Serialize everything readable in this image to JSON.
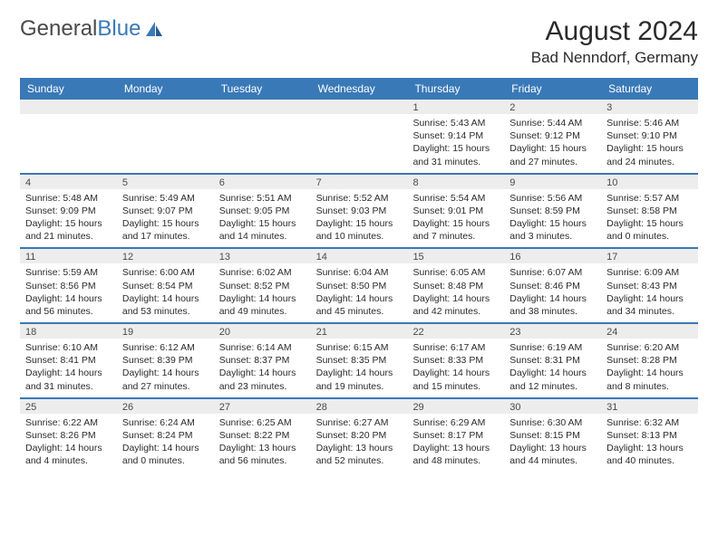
{
  "logo": {
    "text_gray": "General",
    "text_blue": "Blue"
  },
  "title": "August 2024",
  "location": "Bad Nenndorf, Germany",
  "colors": {
    "header_bg": "#3a79b7",
    "daynum_bg": "#ededed",
    "text": "#2b2b2b",
    "border": "#3a79b7"
  },
  "weekdays": [
    "Sunday",
    "Monday",
    "Tuesday",
    "Wednesday",
    "Thursday",
    "Friday",
    "Saturday"
  ],
  "weeks": [
    [
      {
        "n": "",
        "sr": "",
        "ss": "",
        "dl": ""
      },
      {
        "n": "",
        "sr": "",
        "ss": "",
        "dl": ""
      },
      {
        "n": "",
        "sr": "",
        "ss": "",
        "dl": ""
      },
      {
        "n": "",
        "sr": "",
        "ss": "",
        "dl": ""
      },
      {
        "n": "1",
        "sr": "Sunrise: 5:43 AM",
        "ss": "Sunset: 9:14 PM",
        "dl": "Daylight: 15 hours and 31 minutes."
      },
      {
        "n": "2",
        "sr": "Sunrise: 5:44 AM",
        "ss": "Sunset: 9:12 PM",
        "dl": "Daylight: 15 hours and 27 minutes."
      },
      {
        "n": "3",
        "sr": "Sunrise: 5:46 AM",
        "ss": "Sunset: 9:10 PM",
        "dl": "Daylight: 15 hours and 24 minutes."
      }
    ],
    [
      {
        "n": "4",
        "sr": "Sunrise: 5:48 AM",
        "ss": "Sunset: 9:09 PM",
        "dl": "Daylight: 15 hours and 21 minutes."
      },
      {
        "n": "5",
        "sr": "Sunrise: 5:49 AM",
        "ss": "Sunset: 9:07 PM",
        "dl": "Daylight: 15 hours and 17 minutes."
      },
      {
        "n": "6",
        "sr": "Sunrise: 5:51 AM",
        "ss": "Sunset: 9:05 PM",
        "dl": "Daylight: 15 hours and 14 minutes."
      },
      {
        "n": "7",
        "sr": "Sunrise: 5:52 AM",
        "ss": "Sunset: 9:03 PM",
        "dl": "Daylight: 15 hours and 10 minutes."
      },
      {
        "n": "8",
        "sr": "Sunrise: 5:54 AM",
        "ss": "Sunset: 9:01 PM",
        "dl": "Daylight: 15 hours and 7 minutes."
      },
      {
        "n": "9",
        "sr": "Sunrise: 5:56 AM",
        "ss": "Sunset: 8:59 PM",
        "dl": "Daylight: 15 hours and 3 minutes."
      },
      {
        "n": "10",
        "sr": "Sunrise: 5:57 AM",
        "ss": "Sunset: 8:58 PM",
        "dl": "Daylight: 15 hours and 0 minutes."
      }
    ],
    [
      {
        "n": "11",
        "sr": "Sunrise: 5:59 AM",
        "ss": "Sunset: 8:56 PM",
        "dl": "Daylight: 14 hours and 56 minutes."
      },
      {
        "n": "12",
        "sr": "Sunrise: 6:00 AM",
        "ss": "Sunset: 8:54 PM",
        "dl": "Daylight: 14 hours and 53 minutes."
      },
      {
        "n": "13",
        "sr": "Sunrise: 6:02 AM",
        "ss": "Sunset: 8:52 PM",
        "dl": "Daylight: 14 hours and 49 minutes."
      },
      {
        "n": "14",
        "sr": "Sunrise: 6:04 AM",
        "ss": "Sunset: 8:50 PM",
        "dl": "Daylight: 14 hours and 45 minutes."
      },
      {
        "n": "15",
        "sr": "Sunrise: 6:05 AM",
        "ss": "Sunset: 8:48 PM",
        "dl": "Daylight: 14 hours and 42 minutes."
      },
      {
        "n": "16",
        "sr": "Sunrise: 6:07 AM",
        "ss": "Sunset: 8:46 PM",
        "dl": "Daylight: 14 hours and 38 minutes."
      },
      {
        "n": "17",
        "sr": "Sunrise: 6:09 AM",
        "ss": "Sunset: 8:43 PM",
        "dl": "Daylight: 14 hours and 34 minutes."
      }
    ],
    [
      {
        "n": "18",
        "sr": "Sunrise: 6:10 AM",
        "ss": "Sunset: 8:41 PM",
        "dl": "Daylight: 14 hours and 31 minutes."
      },
      {
        "n": "19",
        "sr": "Sunrise: 6:12 AM",
        "ss": "Sunset: 8:39 PM",
        "dl": "Daylight: 14 hours and 27 minutes."
      },
      {
        "n": "20",
        "sr": "Sunrise: 6:14 AM",
        "ss": "Sunset: 8:37 PM",
        "dl": "Daylight: 14 hours and 23 minutes."
      },
      {
        "n": "21",
        "sr": "Sunrise: 6:15 AM",
        "ss": "Sunset: 8:35 PM",
        "dl": "Daylight: 14 hours and 19 minutes."
      },
      {
        "n": "22",
        "sr": "Sunrise: 6:17 AM",
        "ss": "Sunset: 8:33 PM",
        "dl": "Daylight: 14 hours and 15 minutes."
      },
      {
        "n": "23",
        "sr": "Sunrise: 6:19 AM",
        "ss": "Sunset: 8:31 PM",
        "dl": "Daylight: 14 hours and 12 minutes."
      },
      {
        "n": "24",
        "sr": "Sunrise: 6:20 AM",
        "ss": "Sunset: 8:28 PM",
        "dl": "Daylight: 14 hours and 8 minutes."
      }
    ],
    [
      {
        "n": "25",
        "sr": "Sunrise: 6:22 AM",
        "ss": "Sunset: 8:26 PM",
        "dl": "Daylight: 14 hours and 4 minutes."
      },
      {
        "n": "26",
        "sr": "Sunrise: 6:24 AM",
        "ss": "Sunset: 8:24 PM",
        "dl": "Daylight: 14 hours and 0 minutes."
      },
      {
        "n": "27",
        "sr": "Sunrise: 6:25 AM",
        "ss": "Sunset: 8:22 PM",
        "dl": "Daylight: 13 hours and 56 minutes."
      },
      {
        "n": "28",
        "sr": "Sunrise: 6:27 AM",
        "ss": "Sunset: 8:20 PM",
        "dl": "Daylight: 13 hours and 52 minutes."
      },
      {
        "n": "29",
        "sr": "Sunrise: 6:29 AM",
        "ss": "Sunset: 8:17 PM",
        "dl": "Daylight: 13 hours and 48 minutes."
      },
      {
        "n": "30",
        "sr": "Sunrise: 6:30 AM",
        "ss": "Sunset: 8:15 PM",
        "dl": "Daylight: 13 hours and 44 minutes."
      },
      {
        "n": "31",
        "sr": "Sunrise: 6:32 AM",
        "ss": "Sunset: 8:13 PM",
        "dl": "Daylight: 13 hours and 40 minutes."
      }
    ]
  ]
}
